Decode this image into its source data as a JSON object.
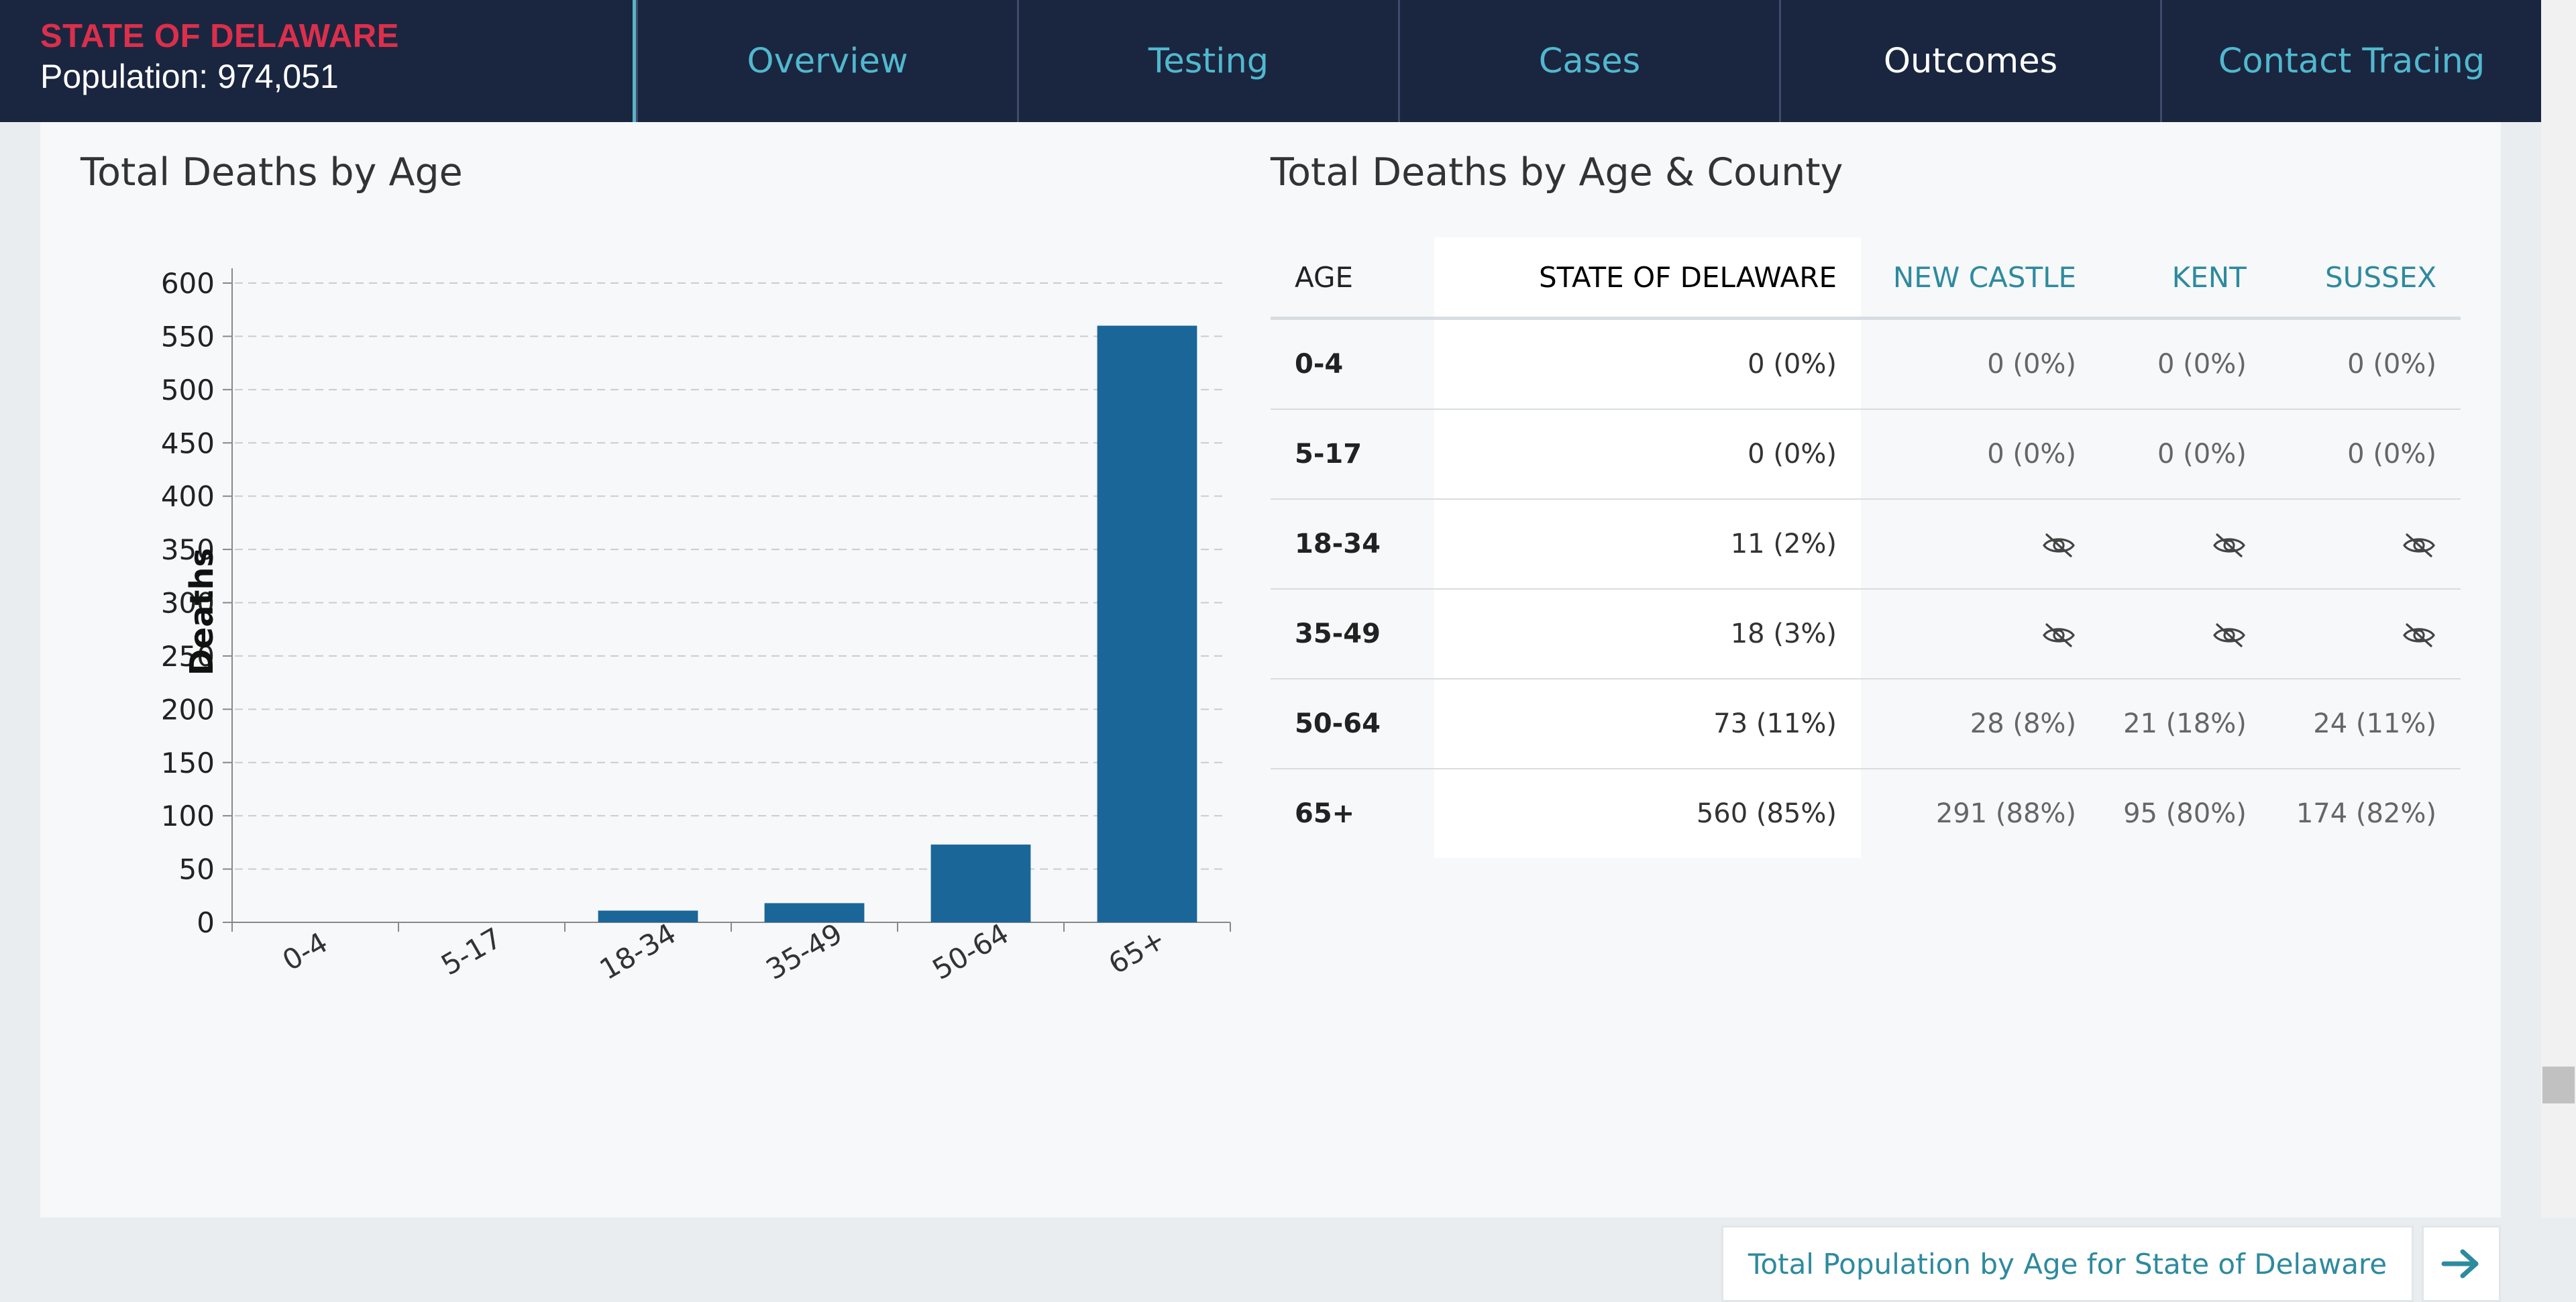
{
  "header": {
    "state_name": "STATE OF DELAWARE",
    "population": "Population: 974,051",
    "tabs": [
      {
        "label": "Overview",
        "active": false
      },
      {
        "label": "Testing",
        "active": false
      },
      {
        "label": "Cases",
        "active": false
      },
      {
        "label": "Outcomes",
        "active": true
      },
      {
        "label": "Contact Tracing",
        "active": false
      }
    ]
  },
  "colors": {
    "header_bg": "#1a2640",
    "brand_red": "#dc2f4b",
    "accent_teal": "#51b8ce",
    "bar_blue": "#1b6699"
  },
  "left_section": {
    "title": "Total Deaths by Age"
  },
  "chart_data": {
    "type": "bar",
    "categories": [
      "0-4",
      "5-17",
      "18-34",
      "35-49",
      "50-64",
      "65+"
    ],
    "values": [
      0,
      0,
      11,
      18,
      73,
      560
    ],
    "title": "",
    "xlabel": "",
    "ylabel": "Deaths",
    "ylim": [
      0,
      600
    ],
    "yticks": [
      0,
      50,
      100,
      150,
      200,
      250,
      300,
      350,
      400,
      450,
      500,
      550,
      600
    ],
    "grid": true,
    "color": "#1b6699"
  },
  "right_section": {
    "title": "Total Deaths by Age & County",
    "columns": [
      "AGE",
      "STATE OF DELAWARE",
      "NEW CASTLE",
      "KENT",
      "SUSSEX"
    ],
    "rows": [
      {
        "age": "0-4",
        "state": "0 (0%)",
        "new_castle": "0 (0%)",
        "kent": "0 (0%)",
        "sussex": "0 (0%)"
      },
      {
        "age": "5-17",
        "state": "0 (0%)",
        "new_castle": "0 (0%)",
        "kent": "0 (0%)",
        "sussex": "0 (0%)"
      },
      {
        "age": "18-34",
        "state": "11 (2%)",
        "new_castle": null,
        "kent": null,
        "sussex": null
      },
      {
        "age": "35-49",
        "state": "18 (3%)",
        "new_castle": null,
        "kent": null,
        "sussex": null
      },
      {
        "age": "50-64",
        "state": "73 (11%)",
        "new_castle": "28 (8%)",
        "kent": "21 (18%)",
        "sussex": "24 (11%)"
      },
      {
        "age": "65+",
        "state": "560 (85%)",
        "new_castle": "291 (88%)",
        "kent": "95 (80%)",
        "sussex": "174 (82%)"
      }
    ],
    "suppressed_icon": "eye-slash-icon"
  },
  "footer_link": {
    "label": "Total Population by Age for State of Delaware",
    "arrow_icon": "arrow-right-icon"
  }
}
